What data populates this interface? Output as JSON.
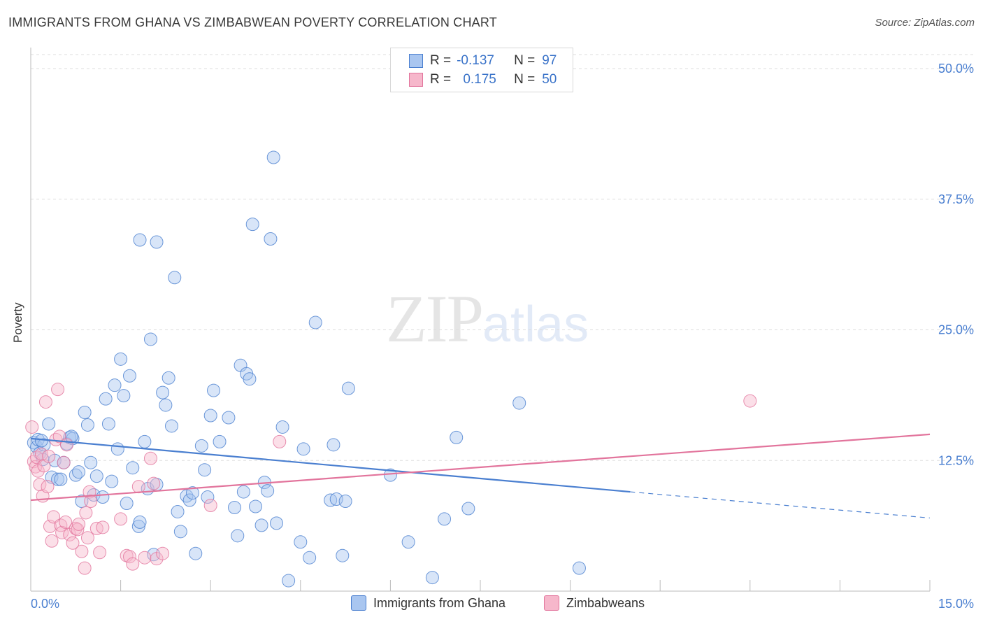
{
  "header": {
    "title": "IMMIGRANTS FROM GHANA VS ZIMBABWEAN POVERTY CORRELATION CHART",
    "source": "Source: ZipAtlas.com"
  },
  "watermark": {
    "part1": "ZIP",
    "part2": "atlas"
  },
  "legend_top": {
    "rows": [
      {
        "r_label": "R =",
        "r_value": "-0.137",
        "n_label": "N =",
        "n_value": "97"
      },
      {
        "r_label": "R =",
        "r_value": "0.175",
        "n_label": "N =",
        "n_value": "50"
      }
    ]
  },
  "colors": {
    "series1": "#4a7fd0",
    "series1_fill": "#a9c6f0",
    "series2": "#e2749c",
    "series2_fill": "#f6b7cb",
    "grid": "#dddddd",
    "tick": "#4a7fd0"
  },
  "chart_data": {
    "type": "scatter",
    "title": "IMMIGRANTS FROM GHANA VS ZIMBABWEAN POVERTY CORRELATION CHART",
    "xlabel": "",
    "ylabel": "Poverty",
    "xlim": [
      0,
      15
    ],
    "ylim": [
      0,
      50
    ],
    "x_tick_labels": [
      "0.0%",
      "15.0%"
    ],
    "y_ticks": [
      12.5,
      25,
      37.5,
      50
    ],
    "y_tick_labels": [
      "12.5%",
      "25.0%",
      "37.5%",
      "50.0%"
    ],
    "grid": true,
    "legend_position": "bottom",
    "series": [
      {
        "name": "Immigrants from Ghana",
        "r": -0.137,
        "n": 97,
        "trend": {
          "x0": 0,
          "y0": 14.6,
          "x1": 10.0,
          "y1": 9.5,
          "dash_x1": 15.0,
          "dash_y1": 7.0
        },
        "points": [
          [
            0.05,
            14.2
          ],
          [
            0.1,
            13.8
          ],
          [
            0.12,
            14.5
          ],
          [
            0.15,
            13.2
          ],
          [
            0.2,
            12.6
          ],
          [
            0.22,
            14.0
          ],
          [
            0.3,
            16.0
          ],
          [
            0.35,
            10.9
          ],
          [
            0.4,
            12.5
          ],
          [
            0.45,
            10.7
          ],
          [
            0.5,
            10.7
          ],
          [
            0.55,
            12.3
          ],
          [
            0.6,
            14.1
          ],
          [
            0.65,
            14.7
          ],
          [
            0.7,
            14.6
          ],
          [
            0.75,
            11.1
          ],
          [
            0.8,
            11.4
          ],
          [
            0.85,
            8.6
          ],
          [
            0.9,
            17.1
          ],
          [
            0.95,
            15.9
          ],
          [
            1.0,
            12.3
          ],
          [
            1.05,
            9.2
          ],
          [
            1.1,
            11.0
          ],
          [
            1.2,
            9.0
          ],
          [
            1.25,
            18.4
          ],
          [
            1.3,
            16.0
          ],
          [
            1.35,
            10.5
          ],
          [
            1.4,
            19.7
          ],
          [
            1.45,
            13.6
          ],
          [
            1.5,
            22.2
          ],
          [
            1.55,
            18.7
          ],
          [
            1.6,
            8.4
          ],
          [
            1.65,
            20.6
          ],
          [
            1.7,
            11.8
          ],
          [
            1.8,
            6.2
          ],
          [
            1.82,
            6.6
          ],
          [
            1.9,
            14.3
          ],
          [
            1.95,
            9.8
          ],
          [
            2.0,
            24.1
          ],
          [
            2.05,
            3.5
          ],
          [
            2.1,
            10.2
          ],
          [
            2.2,
            19.0
          ],
          [
            2.25,
            17.8
          ],
          [
            2.3,
            20.4
          ],
          [
            2.35,
            15.8
          ],
          [
            2.4,
            30.0
          ],
          [
            2.45,
            7.6
          ],
          [
            2.5,
            5.7
          ],
          [
            2.6,
            9.1
          ],
          [
            2.65,
            8.7
          ],
          [
            2.7,
            9.4
          ],
          [
            2.75,
            3.6
          ],
          [
            2.85,
            13.9
          ],
          [
            2.9,
            11.6
          ],
          [
            2.95,
            9.0
          ],
          [
            3.0,
            16.8
          ],
          [
            3.05,
            19.2
          ],
          [
            3.15,
            14.3
          ],
          [
            3.3,
            16.6
          ],
          [
            3.4,
            8.0
          ],
          [
            3.45,
            5.3
          ],
          [
            3.5,
            21.6
          ],
          [
            3.55,
            9.5
          ],
          [
            3.6,
            20.8
          ],
          [
            3.65,
            20.3
          ],
          [
            3.7,
            35.1
          ],
          [
            3.75,
            8.1
          ],
          [
            3.85,
            6.3
          ],
          [
            3.9,
            10.4
          ],
          [
            3.95,
            9.6
          ],
          [
            4.0,
            33.7
          ],
          [
            4.05,
            41.5
          ],
          [
            4.1,
            6.5
          ],
          [
            4.2,
            15.7
          ],
          [
            4.3,
            1.0
          ],
          [
            4.5,
            4.7
          ],
          [
            4.55,
            13.6
          ],
          [
            4.65,
            3.2
          ],
          [
            4.75,
            25.7
          ],
          [
            5.0,
            8.7
          ],
          [
            5.05,
            14.0
          ],
          [
            5.1,
            8.8
          ],
          [
            5.2,
            3.4
          ],
          [
            5.25,
            8.6
          ],
          [
            5.3,
            19.4
          ],
          [
            6.0,
            11.1
          ],
          [
            6.3,
            4.7
          ],
          [
            6.7,
            1.3
          ],
          [
            6.9,
            6.9
          ],
          [
            7.1,
            14.7
          ],
          [
            7.3,
            7.9
          ],
          [
            8.15,
            18.0
          ],
          [
            9.15,
            2.2
          ],
          [
            1.82,
            33.6
          ],
          [
            2.1,
            33.4
          ],
          [
            0.68,
            14.8
          ],
          [
            0.18,
            14.4
          ]
        ]
      },
      {
        "name": "Zimbabweans",
        "r": 0.175,
        "n": 50,
        "trend": {
          "x0": 0,
          "y0": 8.7,
          "x1": 15.0,
          "y1": 15.0
        },
        "points": [
          [
            0.02,
            15.7
          ],
          [
            0.05,
            12.4
          ],
          [
            0.08,
            11.9
          ],
          [
            0.1,
            12.8
          ],
          [
            0.12,
            11.5
          ],
          [
            0.15,
            10.2
          ],
          [
            0.18,
            13.1
          ],
          [
            0.2,
            9.1
          ],
          [
            0.22,
            12.0
          ],
          [
            0.25,
            18.1
          ],
          [
            0.28,
            10.0
          ],
          [
            0.3,
            12.9
          ],
          [
            0.32,
            6.2
          ],
          [
            0.35,
            4.8
          ],
          [
            0.38,
            7.1
          ],
          [
            0.42,
            14.5
          ],
          [
            0.45,
            19.3
          ],
          [
            0.48,
            14.8
          ],
          [
            0.5,
            6.3
          ],
          [
            0.52,
            5.6
          ],
          [
            0.55,
            12.3
          ],
          [
            0.58,
            6.6
          ],
          [
            0.6,
            14.0
          ],
          [
            0.65,
            5.4
          ],
          [
            0.7,
            4.6
          ],
          [
            0.75,
            6.0
          ],
          [
            0.78,
            5.9
          ],
          [
            0.8,
            6.4
          ],
          [
            0.85,
            3.8
          ],
          [
            0.9,
            2.2
          ],
          [
            0.92,
            7.5
          ],
          [
            0.95,
            5.1
          ],
          [
            0.98,
            9.5
          ],
          [
            1.0,
            8.6
          ],
          [
            1.1,
            6.0
          ],
          [
            1.15,
            3.7
          ],
          [
            1.2,
            6.1
          ],
          [
            1.5,
            6.9
          ],
          [
            1.6,
            3.4
          ],
          [
            1.65,
            3.3
          ],
          [
            1.7,
            2.6
          ],
          [
            1.8,
            10.0
          ],
          [
            1.9,
            3.2
          ],
          [
            2.0,
            12.7
          ],
          [
            2.05,
            10.3
          ],
          [
            2.1,
            3.1
          ],
          [
            2.2,
            3.6
          ],
          [
            3.0,
            8.2
          ],
          [
            4.15,
            14.3
          ],
          [
            12.0,
            18.2
          ]
        ]
      }
    ]
  },
  "legend_bottom": {
    "items": [
      {
        "label": "Immigrants from Ghana"
      },
      {
        "label": "Zimbabweans"
      }
    ]
  }
}
